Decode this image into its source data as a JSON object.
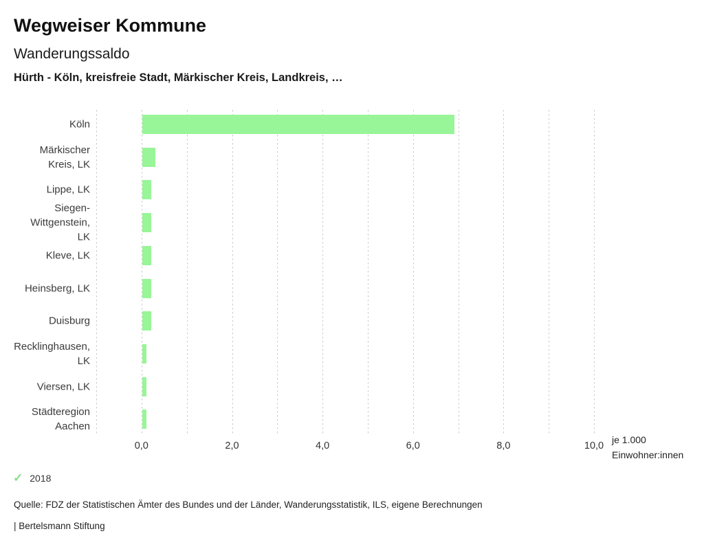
{
  "header": {
    "title": "Wegweiser Kommune",
    "subtitle": "Wanderungssaldo",
    "scope": "Hürth - Köln, kreisfreie Stadt, Märkischer Kreis, Landkreis, …"
  },
  "legend": {
    "check_glyph": "✓",
    "year": "2018"
  },
  "footer": {
    "source": "Quelle: FDZ der Statistischen Ämter des Bundes und der Länder, Wanderungsstatistik, ILS, eigene Berechnungen",
    "attribution": "| Bertelsmann Stiftung"
  },
  "colors": {
    "bar": "#98f598",
    "check": "#86df86",
    "gridline": "#c9c9c9"
  },
  "chart_data": {
    "type": "bar",
    "orientation": "horizontal",
    "title": "Wanderungssaldo",
    "subtitle": "Hürth - Köln, kreisfreie Stadt, Märkischer Kreis, Landkreis, …",
    "series_name": "2018",
    "unit_label_line1": "je 1.000",
    "unit_label_line2": "Einwohner:innen",
    "categories": [
      "Köln",
      "Märkischer Kreis, LK",
      "Lippe, LK",
      "Siegen-Wittgenstein, LK",
      "Kleve, LK",
      "Heinsberg, LK",
      "Duisburg",
      "Recklinghausen, LK",
      "Viersen, LK",
      "Städteregion Aachen"
    ],
    "category_lines": [
      [
        "Köln"
      ],
      [
        "Märkischer",
        "Kreis, LK"
      ],
      [
        "Lippe, LK"
      ],
      [
        "Siegen-",
        "Wittgenstein,",
        "LK"
      ],
      [
        "Kleve, LK"
      ],
      [
        "Heinsberg, LK"
      ],
      [
        "Duisburg"
      ],
      [
        "Recklinghausen,",
        "LK"
      ],
      [
        "Viersen, LK"
      ],
      [
        "Städteregion",
        "Aachen"
      ]
    ],
    "values": [
      6.9,
      0.3,
      0.2,
      0.2,
      0.2,
      0.2,
      0.2,
      0.1,
      0.1,
      0.1
    ],
    "xlim": [
      -1.0,
      10.0
    ],
    "gridline_step": 1.0,
    "x_tick_values": [
      0,
      2,
      4,
      6,
      8,
      10
    ],
    "x_tick_labels": [
      "0,0",
      "2,0",
      "4,0",
      "6,0",
      "8,0",
      "10,0"
    ],
    "grid": "vertical-dashed",
    "legend_position": "bottom-left"
  }
}
